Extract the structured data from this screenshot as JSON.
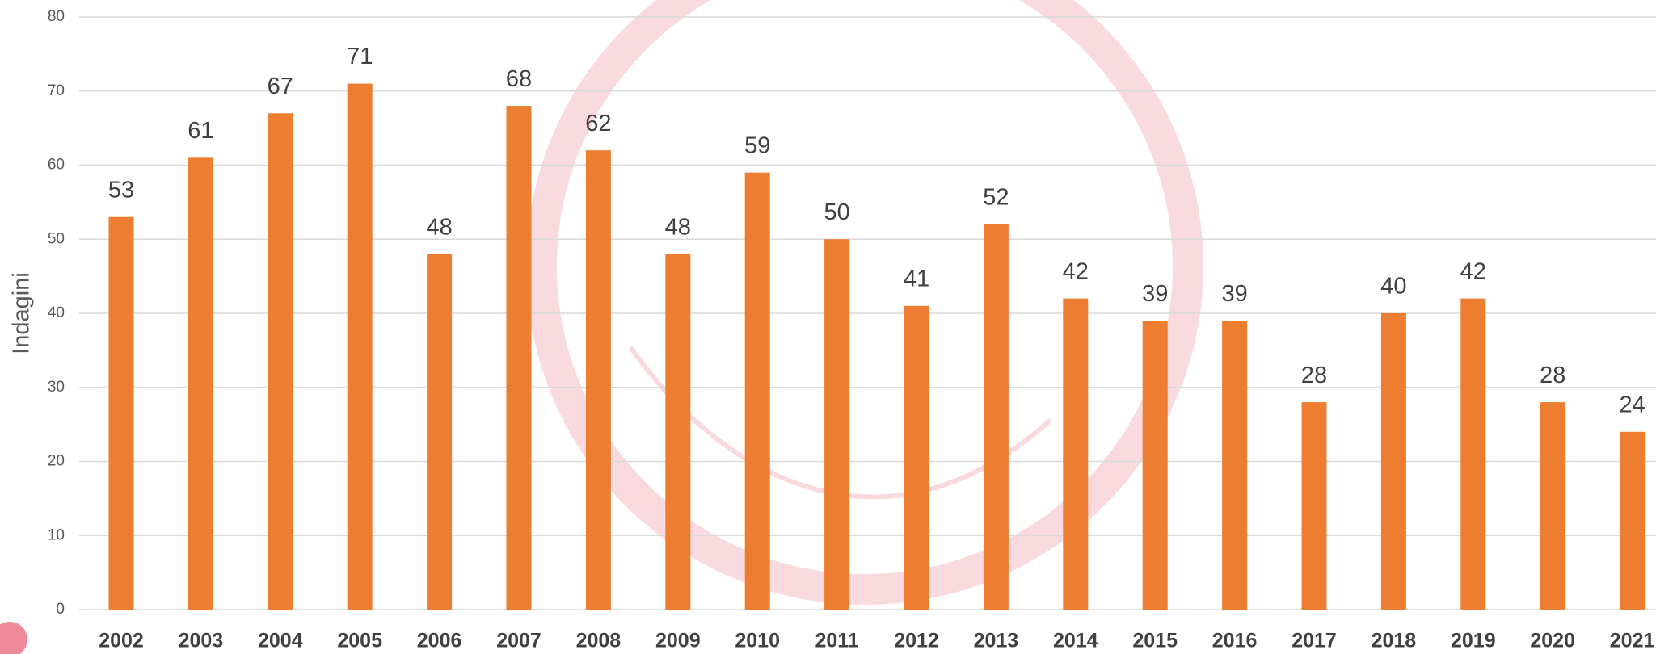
{
  "chart_data": {
    "type": "bar",
    "ylabel": "Indagini",
    "categories": [
      "2002",
      "2003",
      "2004",
      "2005",
      "2006",
      "2007",
      "2008",
      "2009",
      "2010",
      "2011",
      "2012",
      "2013",
      "2014",
      "2015",
      "2016",
      "2017",
      "2018",
      "2019",
      "2020",
      "2021"
    ],
    "values": [
      53,
      61,
      67,
      71,
      48,
      68,
      62,
      48,
      59,
      50,
      41,
      52,
      42,
      39,
      39,
      28,
      40,
      42,
      28,
      24
    ],
    "color": "#ed7d31",
    "ylim": [
      0,
      80
    ],
    "yticks": [
      0,
      10,
      20,
      30,
      40,
      50,
      60,
      70,
      80
    ],
    "grid": true
  }
}
